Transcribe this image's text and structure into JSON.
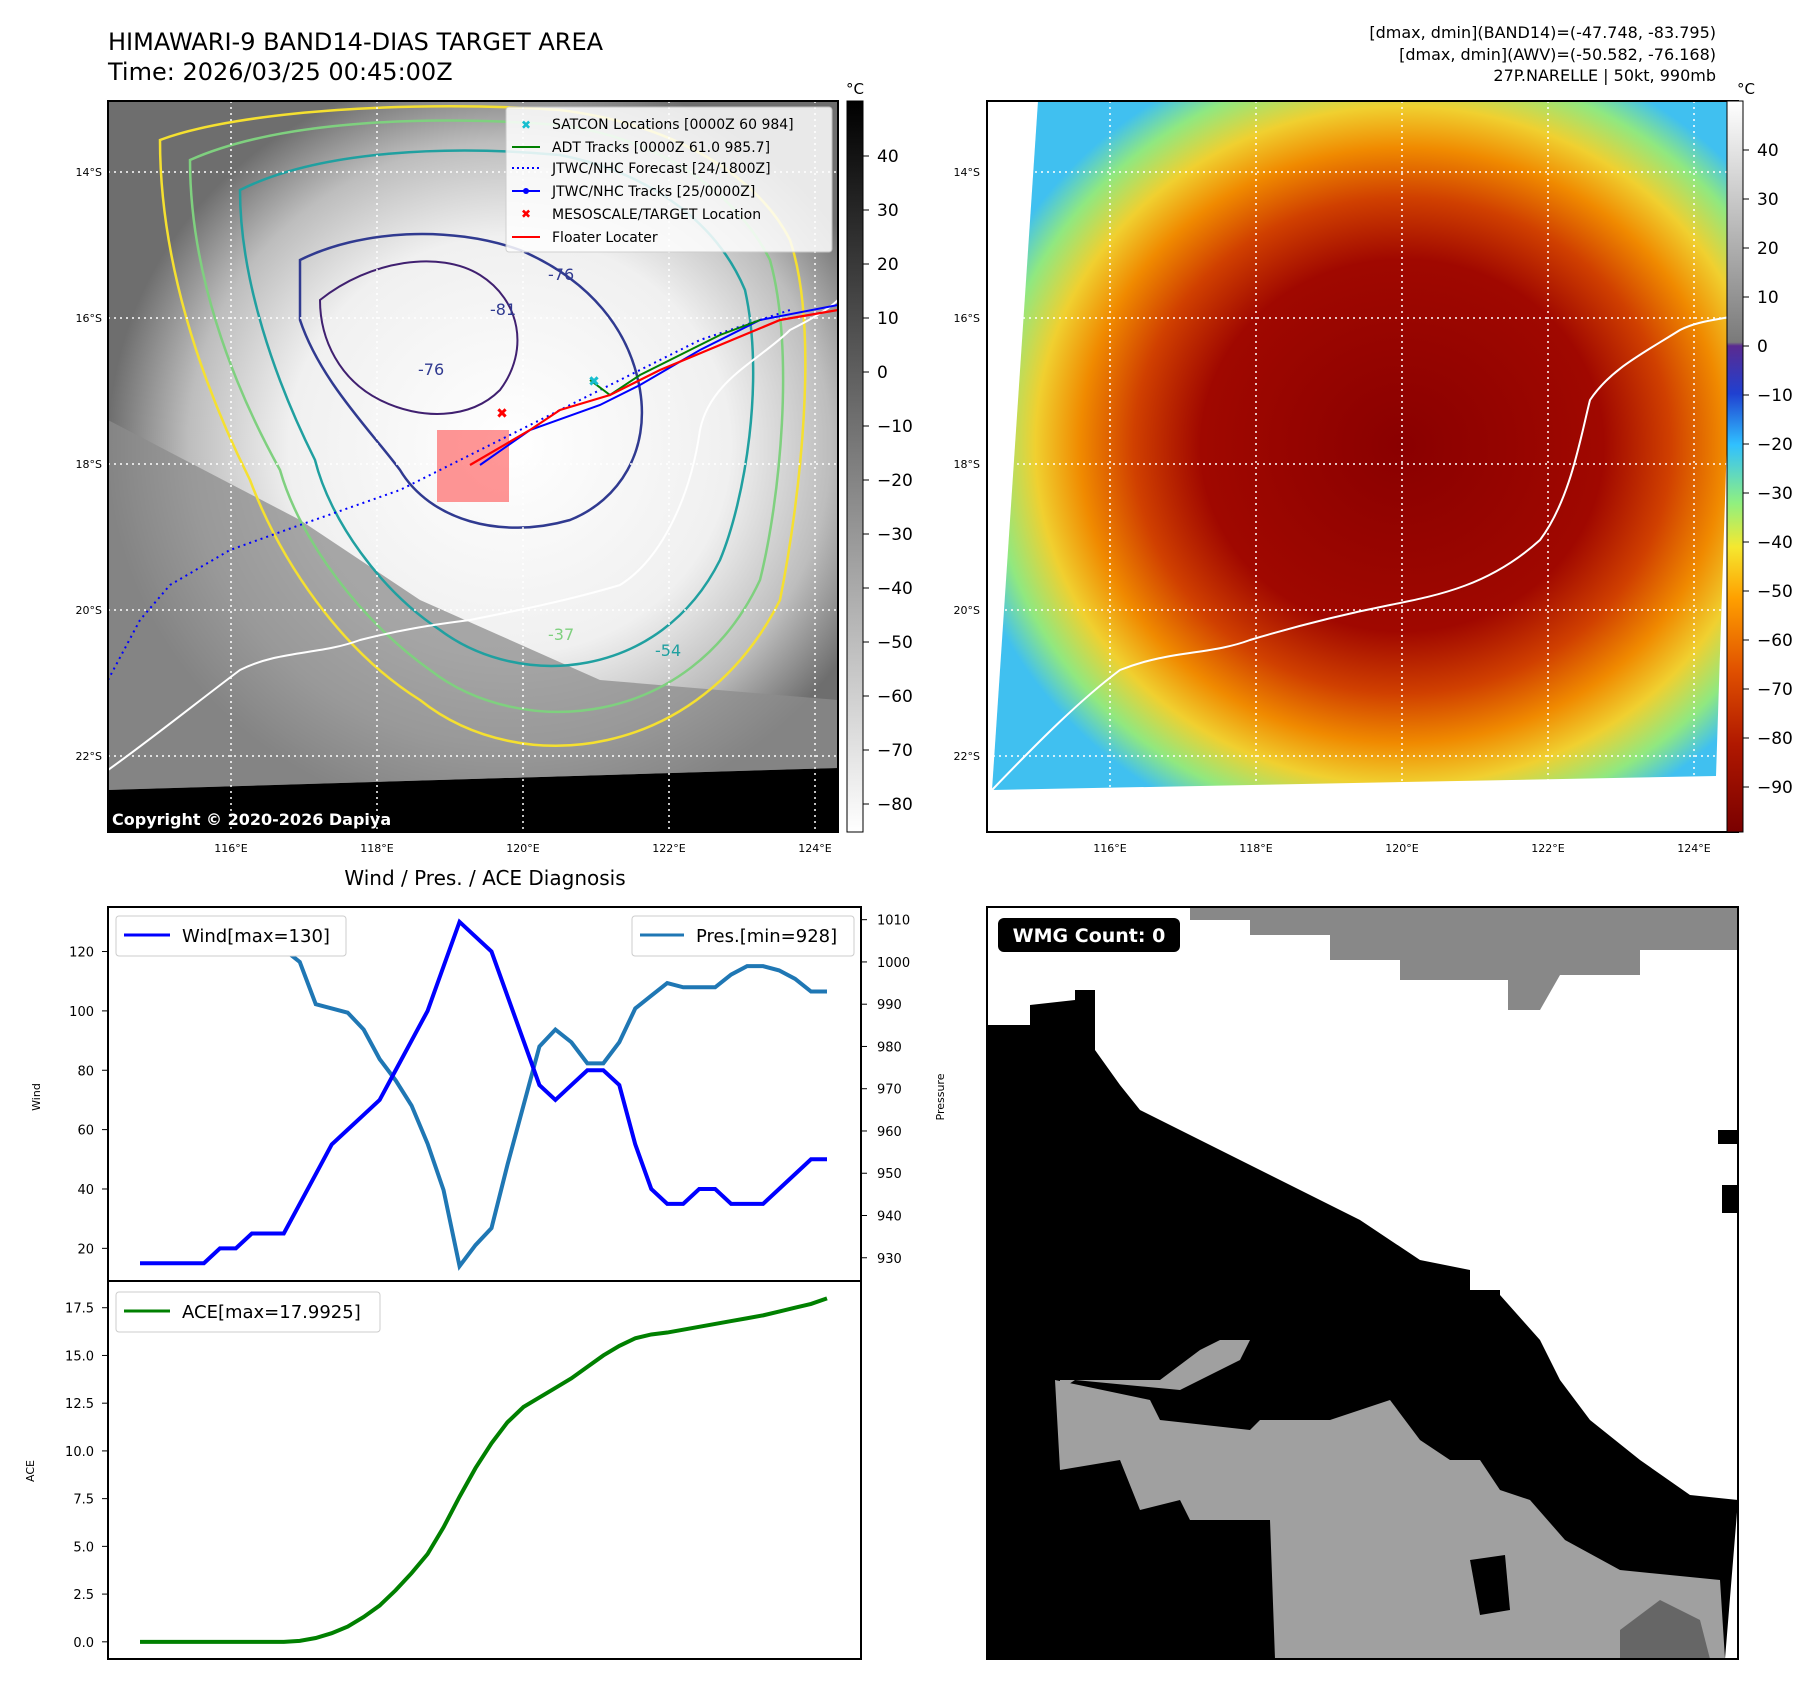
{
  "header": {
    "title_line1": "HIMAWARI-9 BAND14-DIAS TARGET AREA",
    "title_line2": "Time: 2026/03/25 00:45:00Z",
    "stats_line1": "[dmax, dmin](BAND14)=(-47.748, -83.795)",
    "stats_line2": "[dmax, dmin](AWV)=(-50.582, -76.168)",
    "stats_line3": "27P.NARELLE | 50kt, 990mb"
  },
  "map_left": {
    "lat_labels": [
      "14°S",
      "16°S",
      "18°S",
      "20°S",
      "22°S"
    ],
    "lon_labels": [
      "116°E",
      "118°E",
      "120°E",
      "122°E",
      "124°E"
    ],
    "colorbar_unit": "°C",
    "colorbar_ticks": [
      "40",
      "30",
      "20",
      "10",
      "0",
      "−10",
      "−20",
      "−30",
      "−40",
      "−50",
      "−60",
      "−70",
      "−80"
    ],
    "contour_labels": [
      "-81",
      "-76",
      "-76",
      "-37",
      "-54"
    ],
    "copyright": "Copyright © 2020-2026 Dapiya",
    "legend": [
      {
        "label": "SATCON Locations [0000Z 60 984]",
        "color": "#17becf"
      },
      {
        "label": "ADT Tracks [0000Z 61.0 985.7]",
        "color": "#008000"
      },
      {
        "label": "JTWC/NHC Forecast [24/1800Z]",
        "color": "#0000ff"
      },
      {
        "label": "JTWC/NHC Tracks [25/0000Z]",
        "color": "#0000ff"
      },
      {
        "label": "MESOSCALE/TARGET Location",
        "color": "#ff0000"
      },
      {
        "label": "Floater Locater",
        "color": "#ff0000"
      }
    ]
  },
  "map_right": {
    "lat_labels": [
      "14°S",
      "16°S",
      "18°S",
      "20°S",
      "22°S"
    ],
    "lon_labels": [
      "116°E",
      "118°E",
      "120°E",
      "122°E",
      "124°E"
    ],
    "colorbar_unit": "°C",
    "colorbar_ticks": [
      "40",
      "30",
      "20",
      "10",
      "0",
      "−10",
      "−20",
      "−30",
      "−40",
      "−50",
      "−60",
      "−70",
      "−80",
      "−90"
    ]
  },
  "diagnosis": {
    "title": "Wind / Pres. / ACE Diagnosis",
    "wind_axis_label": "Wind",
    "pressure_axis_label": "Pressure",
    "ace_axis_label": "ACE"
  },
  "wmg": {
    "label": "WMG Count: 0"
  },
  "chart_data": [
    {
      "type": "line",
      "title": "Wind / Pres. / ACE Diagnosis",
      "x": [
        0,
        1,
        2,
        3,
        4,
        5,
        6,
        7,
        8,
        9,
        10,
        11,
        12,
        13,
        14,
        15,
        16,
        17,
        18,
        19,
        20,
        21,
        22,
        23,
        24,
        25,
        26,
        27,
        28,
        29,
        30,
        31,
        32,
        33,
        34,
        35,
        36,
        37,
        38,
        39,
        40,
        41,
        42,
        43
      ],
      "series": [
        {
          "name": "Wind[max=130]",
          "axis": "left",
          "color": "#0000ff",
          "values": [
            15,
            15,
            15,
            15,
            15,
            20,
            20,
            25,
            25,
            25,
            35,
            45,
            55,
            60,
            65,
            70,
            80,
            90,
            100,
            115,
            130,
            125,
            120,
            105,
            90,
            75,
            70,
            75,
            80,
            80,
            75,
            55,
            40,
            35,
            35,
            40,
            40,
            35,
            35,
            35,
            40,
            45,
            50,
            50
          ]
        },
        {
          "name": "Pres.[min=928]",
          "axis": "right",
          "color": "#1f77b4",
          "values": [
            1010,
            1010,
            1005,
            1006,
            1005,
            1003,
            1003,
            1003,
            1003,
            1003,
            1000,
            990,
            989,
            988,
            984,
            977,
            972,
            966,
            957,
            946,
            928,
            933,
            937,
            952,
            966,
            980,
            984,
            981,
            976,
            976,
            981,
            989,
            992,
            995,
            994,
            994,
            994,
            997,
            999,
            999,
            998,
            996,
            993,
            993
          ]
        },
        {
          "name": "ACE[max=17.9925]",
          "axis": "ace",
          "color": "#008000",
          "values": [
            0,
            0,
            0,
            0,
            0,
            0,
            0,
            0,
            0,
            0,
            0.05,
            0.2,
            0.45,
            0.8,
            1.3,
            1.9,
            2.7,
            3.6,
            4.6,
            6,
            7.6,
            9.1,
            10.4,
            11.5,
            12.3,
            12.8,
            13.3,
            13.8,
            14.4,
            15,
            15.5,
            15.9,
            16.1,
            16.2,
            16.35,
            16.5,
            16.65,
            16.8,
            16.95,
            17.1,
            17.3,
            17.5,
            17.7,
            17.99
          ]
        }
      ],
      "wind_ylim": [
        9,
        135
      ],
      "wind_ticks": [
        20,
        40,
        60,
        80,
        100,
        120
      ],
      "pres_ylim": [
        924.5,
        1013
      ],
      "pres_ticks": [
        930,
        940,
        950,
        960,
        970,
        980,
        990,
        1000,
        1010
      ],
      "ace_ylim": [
        -0.9,
        18.9
      ],
      "ace_ticks": [
        0.0,
        2.5,
        5.0,
        7.5,
        10.0,
        12.5,
        15.0,
        17.5
      ],
      "ace_tick_labels": [
        "0.0",
        "2.5",
        "5.0",
        "7.5",
        "10.0",
        "12.5",
        "15.0",
        "17.5"
      ]
    }
  ]
}
